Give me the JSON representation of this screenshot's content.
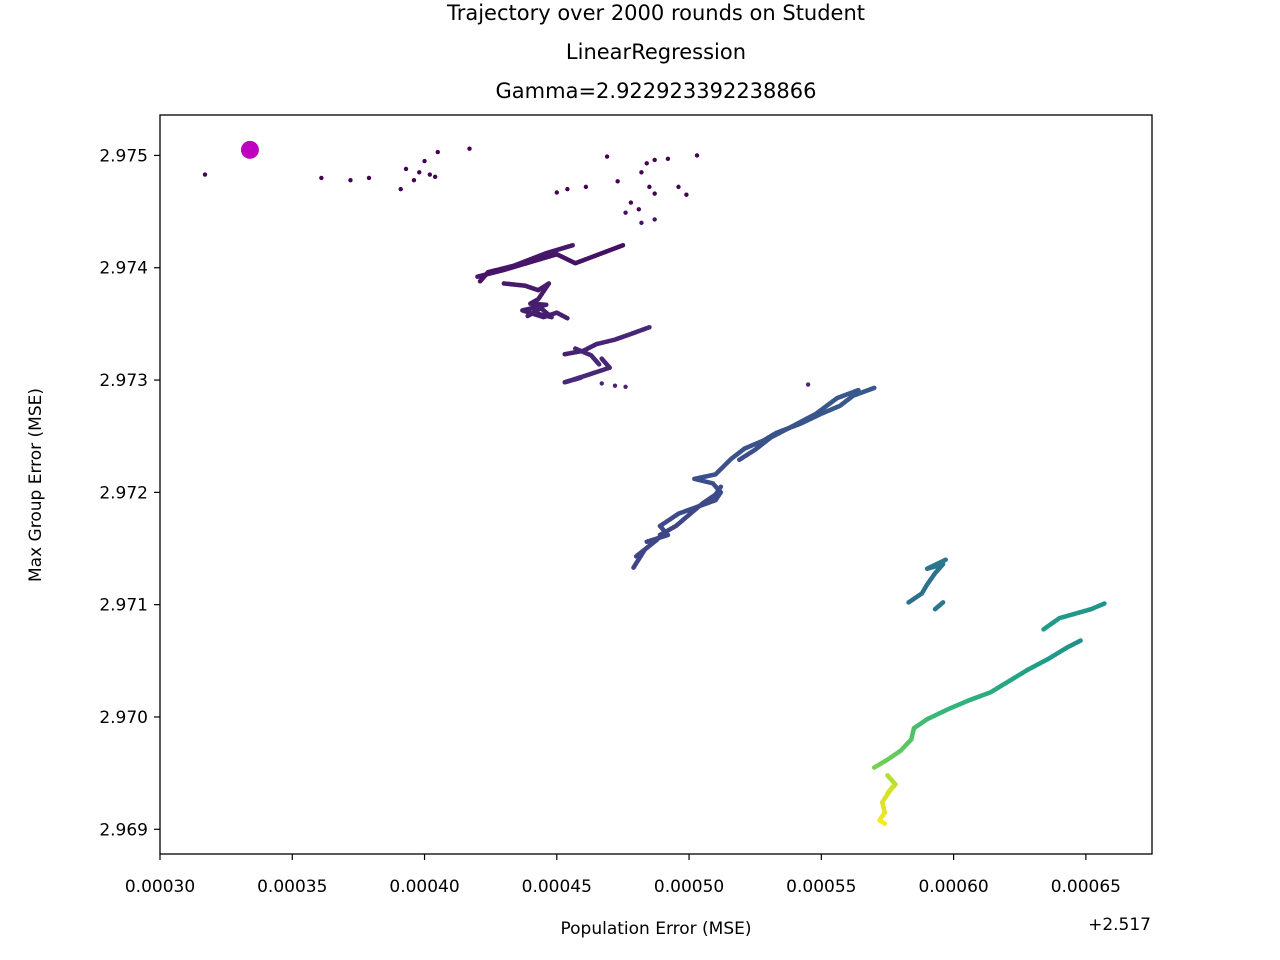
{
  "chart_data": {
    "type": "scatter",
    "title_lines": [
      "Trajectory over 2000 rounds on Student",
      "LinearRegression",
      "Gamma=2.922923392238866"
    ],
    "xlabel": "Population Error (MSE)",
    "ylabel": "Max Group Error (MSE)",
    "x_offset_label": "+2.517",
    "x_offset": 2.517,
    "xlim": [
      0.0003,
      0.000675
    ],
    "ylim": [
      2.96878,
      2.97536
    ],
    "xticks": [
      0.0003,
      0.00035,
      0.0004,
      0.00045,
      0.0005,
      0.00055,
      0.0006,
      0.00065
    ],
    "xtick_labels": [
      "0.00030",
      "0.00035",
      "0.00040",
      "0.00045",
      "0.00050",
      "0.00055",
      "0.00060",
      "0.00065"
    ],
    "yticks": [
      2.969,
      2.97,
      2.971,
      2.972,
      2.973,
      2.974,
      2.975
    ],
    "ytick_labels": [
      "2.969",
      "2.970",
      "2.971",
      "2.972",
      "2.973",
      "2.974",
      "2.975"
    ],
    "colormap": "viridis",
    "color_note": "points colored by round index (early=dark purple, late=yellow)",
    "start_marker": {
      "x": 0.000334,
      "y": 2.97505,
      "color": "#c000c0"
    },
    "scattered_points": [
      {
        "x": 0.000317,
        "y": 2.97483
      },
      {
        "x": 0.000361,
        "y": 2.9748
      },
      {
        "x": 0.000372,
        "y": 2.97478
      },
      {
        "x": 0.000379,
        "y": 2.9748
      },
      {
        "x": 0.000391,
        "y": 2.9747
      },
      {
        "x": 0.000393,
        "y": 2.97488
      },
      {
        "x": 0.000396,
        "y": 2.97478
      },
      {
        "x": 0.000398,
        "y": 2.97485
      },
      {
        "x": 0.0004,
        "y": 2.97495
      },
      {
        "x": 0.000402,
        "y": 2.97483
      },
      {
        "x": 0.000404,
        "y": 2.97481
      },
      {
        "x": 0.000405,
        "y": 2.97503
      },
      {
        "x": 0.000417,
        "y": 2.97506
      },
      {
        "x": 0.00045,
        "y": 2.97467
      },
      {
        "x": 0.000454,
        "y": 2.9747
      },
      {
        "x": 0.000461,
        "y": 2.97472
      },
      {
        "x": 0.000469,
        "y": 2.97499
      },
      {
        "x": 0.000473,
        "y": 2.97477
      },
      {
        "x": 0.000482,
        "y": 2.97485
      },
      {
        "x": 0.000484,
        "y": 2.97493
      },
      {
        "x": 0.000487,
        "y": 2.97496
      },
      {
        "x": 0.000485,
        "y": 2.97472
      },
      {
        "x": 0.000487,
        "y": 2.97466
      },
      {
        "x": 0.000496,
        "y": 2.97472
      },
      {
        "x": 0.000499,
        "y": 2.97465
      },
      {
        "x": 0.000503,
        "y": 2.975
      },
      {
        "x": 0.000492,
        "y": 2.97497
      },
      {
        "x": 0.000478,
        "y": 2.97458
      },
      {
        "x": 0.000481,
        "y": 2.97452
      },
      {
        "x": 0.000476,
        "y": 2.97449
      },
      {
        "x": 0.000487,
        "y": 2.97443
      },
      {
        "x": 0.000482,
        "y": 2.9744
      },
      {
        "x": 0.000545,
        "y": 2.97296
      },
      {
        "x": 0.000467,
        "y": 2.97297
      },
      {
        "x": 0.000472,
        "y": 2.97295
      },
      {
        "x": 0.000476,
        "y": 2.97294
      }
    ],
    "trajectory_segments": [
      {
        "points": [
          [
            0.000475,
            2.9742
          ],
          [
            0.000466,
            2.97412
          ],
          [
            0.000457,
            2.97404
          ],
          [
            0.00045,
            2.97412
          ],
          [
            0.00044,
            2.97405
          ],
          [
            0.00043,
            2.97398
          ],
          [
            0.00042,
            2.97392
          ]
        ],
        "t0": 0.04,
        "t1": 0.07
      },
      {
        "points": [
          [
            0.000421,
            2.97388
          ],
          [
            0.000424,
            2.97396
          ],
          [
            0.000434,
            2.97402
          ],
          [
            0.000446,
            2.97413
          ],
          [
            0.000456,
            2.9742
          ]
        ],
        "t0": 0.05,
        "t1": 0.07
      },
      {
        "points": [
          [
            0.00043,
            2.97386
          ],
          [
            0.000438,
            2.97384
          ],
          [
            0.000443,
            2.9738
          ],
          [
            0.000447,
            2.97386
          ],
          [
            0.000443,
            2.97372
          ],
          [
            0.00044,
            2.97368
          ],
          [
            0.000446,
            2.97367
          ],
          [
            0.000437,
            2.97362
          ],
          [
            0.000445,
            2.97356
          ],
          [
            0.00045,
            2.9736
          ],
          [
            0.000454,
            2.97355
          ]
        ],
        "t0": 0.07,
        "t1": 0.09
      },
      {
        "points": [
          [
            0.000441,
            2.9736
          ],
          [
            0.000448,
            2.97356
          ],
          [
            0.000444,
            2.97364
          ],
          [
            0.000439,
            2.97357
          ]
        ],
        "t0": 0.08,
        "t1": 0.09
      },
      {
        "points": [
          [
            0.000453,
            2.97323
          ],
          [
            0.00046,
            2.97326
          ],
          [
            0.000465,
            2.97332
          ],
          [
            0.000472,
            2.97336
          ],
          [
            0.000478,
            2.97341
          ],
          [
            0.000485,
            2.97347
          ]
        ],
        "t0": 0.09,
        "t1": 0.11
      },
      {
        "points": [
          [
            0.000467,
            2.97319
          ],
          [
            0.00047,
            2.97311
          ],
          [
            0.000461,
            2.97304
          ],
          [
            0.000453,
            2.97298
          ],
          [
            0.000459,
            2.97302
          ]
        ],
        "t0": 0.1,
        "t1": 0.12
      },
      {
        "points": [
          [
            0.000457,
            2.97328
          ],
          [
            0.000463,
            2.97322
          ],
          [
            0.000466,
            2.97314
          ]
        ],
        "t0": 0.1,
        "t1": 0.11
      },
      {
        "points": [
          [
            0.000479,
            2.97133
          ],
          [
            0.000483,
            2.97148
          ],
          [
            0.00048,
            2.97143
          ],
          [
            0.000488,
            2.97158
          ],
          [
            0.000484,
            2.97156
          ],
          [
            0.000492,
            2.97162
          ],
          [
            0.000489,
            2.9717
          ],
          [
            0.000496,
            2.97181
          ],
          [
            0.000503,
            2.97187
          ],
          [
            0.00051,
            2.97193
          ],
          [
            0.000512,
            2.972
          ],
          [
            0.000509,
            2.97208
          ],
          [
            0.000502,
            2.97212
          ],
          [
            0.00051,
            2.97216
          ],
          [
            0.000516,
            2.9723
          ],
          [
            0.000521,
            2.97239
          ],
          [
            0.000528,
            2.97246
          ],
          [
            0.000533,
            2.97253
          ],
          [
            0.000542,
            2.97261
          ],
          [
            0.00055,
            2.9727
          ],
          [
            0.000557,
            2.97277
          ],
          [
            0.000562,
            2.97286
          ],
          [
            0.00057,
            2.97293
          ]
        ],
        "t0": 0.2,
        "t1": 0.28
      },
      {
        "points": [
          [
            0.000489,
            2.97162
          ],
          [
            0.000495,
            2.9717
          ],
          [
            0.0005,
            2.9718
          ],
          [
            0.000505,
            2.9719
          ],
          [
            0.00051,
            2.97198
          ],
          [
            0.000512,
            2.97205
          ]
        ],
        "t0": 0.2,
        "t1": 0.23
      },
      {
        "points": [
          [
            0.000519,
            2.97229
          ],
          [
            0.000525,
            2.97238
          ],
          [
            0.000531,
            2.97249
          ],
          [
            0.00054,
            2.9726
          ],
          [
            0.000548,
            2.9727
          ],
          [
            0.000556,
            2.97284
          ],
          [
            0.000564,
            2.97291
          ]
        ],
        "t0": 0.24,
        "t1": 0.28
      },
      {
        "points": [
          [
            0.000583,
            2.97102
          ],
          [
            0.000588,
            2.9711
          ],
          [
            0.00059,
            2.97118
          ],
          [
            0.000593,
            2.97128
          ],
          [
            0.000596,
            2.97136
          ],
          [
            0.00059,
            2.97132
          ],
          [
            0.000597,
            2.9714
          ]
        ],
        "t0": 0.36,
        "t1": 0.4
      },
      {
        "points": [
          [
            0.000593,
            2.97096
          ],
          [
            0.000596,
            2.97102
          ]
        ],
        "t0": 0.39,
        "t1": 0.4
      },
      {
        "points": [
          [
            0.00057,
            2.96955
          ],
          [
            0.000575,
            2.96962
          ],
          [
            0.00058,
            2.9697
          ],
          [
            0.000584,
            2.9698
          ],
          [
            0.000585,
            2.9699
          ],
          [
            0.00059,
            2.96998
          ],
          [
            0.000598,
            2.97007
          ],
          [
            0.000606,
            2.97015
          ],
          [
            0.000614,
            2.97022
          ],
          [
            0.000621,
            2.97032
          ],
          [
            0.000628,
            2.97042
          ],
          [
            0.000636,
            2.97052
          ],
          [
            0.000643,
            2.97062
          ],
          [
            0.000648,
            2.97068
          ]
        ],
        "t0": 0.8,
        "t1": 0.5
      },
      {
        "points": [
          [
            0.000634,
            2.97078
          ],
          [
            0.00064,
            2.97088
          ],
          [
            0.000646,
            2.97092
          ],
          [
            0.000652,
            2.97096
          ],
          [
            0.000657,
            2.97101
          ]
        ],
        "t0": 0.55,
        "t1": 0.52
      },
      {
        "points": [
          [
            0.000575,
            2.96948
          ],
          [
            0.000578,
            2.9694
          ],
          [
            0.000575,
            2.96932
          ],
          [
            0.000577,
            2.96938
          ],
          [
            0.000573,
            2.96924
          ],
          [
            0.000574,
            2.96915
          ],
          [
            0.000572,
            2.96908
          ],
          [
            0.000574,
            2.96905
          ]
        ],
        "t0": 0.88,
        "t1": 1.0
      }
    ]
  }
}
